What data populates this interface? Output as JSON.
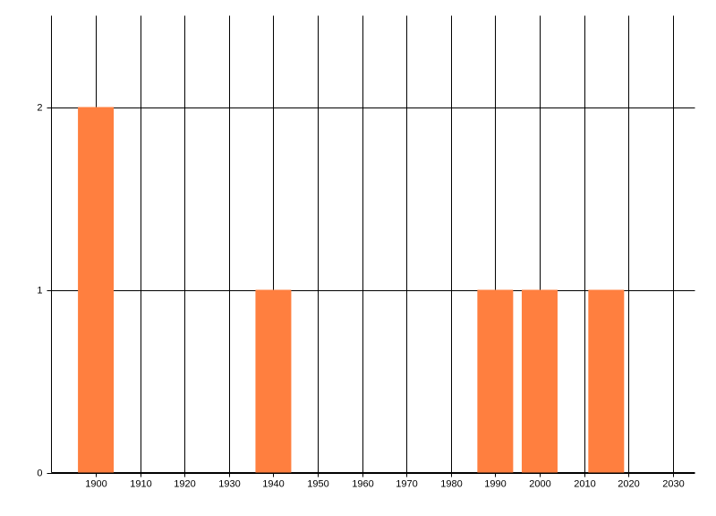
{
  "chart_data": {
    "type": "bar",
    "x": [
      1900,
      1940,
      1990,
      2000,
      2015
    ],
    "values": [
      2,
      1,
      1,
      1,
      1
    ],
    "color": "#ff7f3f",
    "xlim": [
      1890,
      2035
    ],
    "xticks": [
      1900,
      1910,
      1920,
      1930,
      1940,
      1950,
      1960,
      1970,
      1980,
      1990,
      2000,
      2010,
      2020,
      2030
    ],
    "ylim": [
      0,
      2.5
    ],
    "yticks": [
      0,
      1,
      2
    ],
    "grid": true
  }
}
